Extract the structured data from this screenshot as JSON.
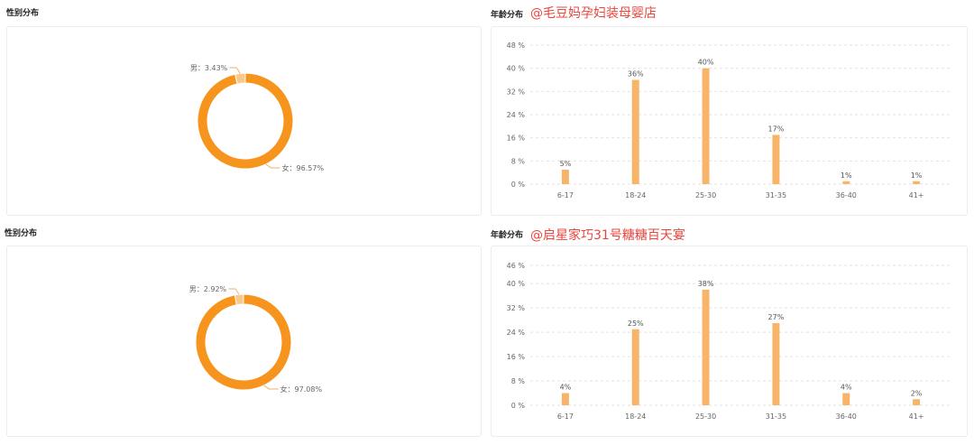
{
  "sections": [
    {
      "gender_title": "性别分布",
      "age_title": "年龄分布",
      "store": "@毛豆妈孕妇装母婴店"
    },
    {
      "gender_title": "性别分布",
      "age_title": "年龄分布",
      "store": "@启星家巧31号糖糖百天宴"
    }
  ],
  "colors": {
    "female": "#f7941d",
    "male": "#f9c98a",
    "bar": "#f8b56a",
    "grid": "#e2e2e2",
    "leader": "#f2b26a"
  },
  "chart_data": [
    {
      "type": "pie",
      "slices": [
        {
          "label": "男",
          "value": 3.43,
          "text": "男：3.43%"
        },
        {
          "label": "女",
          "value": 96.57,
          "text": "女：96.57%"
        }
      ]
    },
    {
      "type": "bar",
      "categories": [
        "6-17",
        "18-24",
        "25-30",
        "31-35",
        "36-40",
        "41+"
      ],
      "values": [
        5,
        36,
        40,
        17,
        1,
        1
      ],
      "value_labels": [
        "5%",
        "36%",
        "40%",
        "17%",
        "1%",
        "1%"
      ],
      "yticks": [
        "0 %",
        "8 %",
        "16 %",
        "24 %",
        "32 %",
        "40 %",
        "48 %"
      ],
      "ylim": [
        0,
        48
      ],
      "grid": true
    },
    {
      "type": "pie",
      "slices": [
        {
          "label": "男",
          "value": 2.92,
          "text": "男：2.92%"
        },
        {
          "label": "女",
          "value": 97.08,
          "text": "女：97.08%"
        }
      ]
    },
    {
      "type": "bar",
      "categories": [
        "6-17",
        "18-24",
        "25-30",
        "31-35",
        "36-40",
        "41+"
      ],
      "values": [
        4,
        25,
        38,
        27,
        4,
        2
      ],
      "value_labels": [
        "4%",
        "25%",
        "38%",
        "27%",
        "4%",
        "2%"
      ],
      "yticks": [
        "0 %",
        "8 %",
        "16 %",
        "24 %",
        "32 %",
        "40 %",
        "46 %"
      ],
      "ylim": [
        0,
        46
      ],
      "grid": true
    }
  ]
}
